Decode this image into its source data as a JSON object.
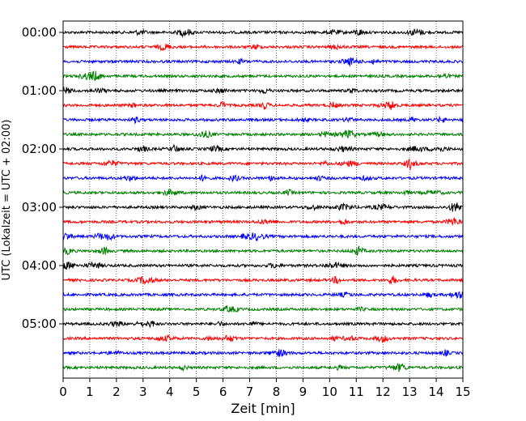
{
  "chart_data": {
    "type": "line",
    "title": "",
    "xlabel": "Zeit  [min]",
    "ylabel": "UTC (Lokalzeit = UTC + 02:00)",
    "xlim": [
      0,
      15
    ],
    "x_ticks": [
      "0",
      "1",
      "2",
      "3",
      "4",
      "5",
      "6",
      "7",
      "8",
      "9",
      "10",
      "11",
      "12",
      "13",
      "14",
      "15"
    ],
    "y_ticks": [
      "00:00",
      "01:00",
      "02:00",
      "03:00",
      "04:00",
      "05:00"
    ],
    "grid": "vertical dotted at each minute",
    "trace_interval_minutes": 15,
    "trace_start_times": [
      "00:00",
      "00:15",
      "00:30",
      "00:45",
      "01:00",
      "01:15",
      "01:30",
      "01:45",
      "02:00",
      "02:15",
      "02:30",
      "02:45",
      "03:00",
      "03:15",
      "03:30",
      "03:45",
      "04:00",
      "04:15",
      "04:30",
      "04:45",
      "05:00",
      "05:15",
      "05:30",
      "05:45"
    ],
    "trace_colors": [
      "#000000",
      "#ff0000",
      "#0000ff",
      "#008000"
    ]
  }
}
